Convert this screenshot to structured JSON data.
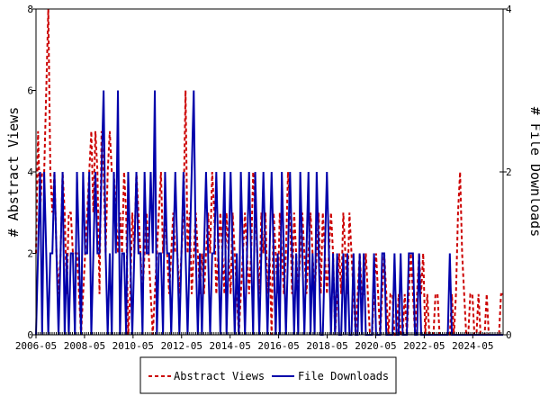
{
  "chart_data": {
    "type": "line",
    "x_tick_labels": [
      "2006-05",
      "2008-05",
      "2010-05",
      "2012-05",
      "2014-05",
      "2016-05",
      "2018-05",
      "2020-05",
      "2022-05",
      "2024-05"
    ],
    "x_start": "2006-05",
    "x_end": "2025-08",
    "y_left": {
      "label": "# Abstract Views",
      "ylim": [
        0,
        8
      ],
      "ticks": [
        "0",
        "2",
        "4",
        "6",
        "8"
      ]
    },
    "y_right": {
      "label": "# File Downloads",
      "ylim": [
        0,
        4
      ],
      "ticks": [
        "0",
        "2",
        "4"
      ]
    },
    "legend": {
      "placement": "bottom-center"
    },
    "series": [
      {
        "name": "Abstract Views",
        "axis": "left",
        "color": "#cc0000",
        "style": "dashed",
        "values": [
          2,
          5,
          3,
          4,
          4,
          6,
          8,
          4,
          3,
          4,
          2,
          1,
          2,
          4,
          3,
          1,
          3,
          3,
          2,
          2,
          2,
          1,
          0,
          1,
          2,
          3,
          4,
          5,
          3,
          5,
          4,
          1,
          5,
          4,
          2,
          4,
          5,
          4,
          4,
          3,
          2,
          3,
          2,
          4,
          3,
          0,
          1,
          3,
          2,
          4,
          3,
          2,
          1,
          2,
          3,
          2,
          1,
          0,
          1,
          2,
          3,
          4,
          2,
          3,
          2,
          1,
          2,
          3,
          2,
          2,
          1,
          2,
          3,
          6,
          2,
          3,
          1,
          2,
          3,
          2,
          1,
          2,
          1,
          2,
          3,
          2,
          4,
          3,
          1,
          2,
          3,
          2,
          1,
          3,
          2,
          1,
          3,
          2,
          1,
          0,
          1,
          2,
          3,
          2,
          1,
          2,
          4,
          3,
          2,
          1,
          3,
          2,
          3,
          1,
          2,
          0,
          3,
          2,
          1,
          3,
          2,
          1,
          2,
          4,
          3,
          1,
          3,
          2,
          1,
          2,
          3,
          2,
          1,
          2,
          3,
          2,
          1,
          2,
          3,
          1,
          3,
          2,
          1,
          2,
          3,
          2,
          0,
          1,
          2,
          1,
          3,
          2,
          1,
          3,
          2,
          1,
          0,
          1,
          2,
          1,
          1,
          2,
          1,
          0,
          0,
          1,
          2,
          1,
          0,
          1,
          2,
          1,
          0,
          1,
          1,
          0,
          0,
          1,
          0,
          0,
          1,
          0,
          1,
          2,
          1,
          0,
          1,
          2,
          1,
          2,
          0,
          1,
          0,
          0,
          0,
          1,
          1,
          0,
          0,
          0,
          0,
          0,
          0,
          1,
          0,
          1,
          3,
          4,
          2,
          1,
          0,
          0,
          1,
          1,
          0,
          0,
          1,
          0,
          0,
          0,
          1,
          0,
          0,
          0,
          0,
          0,
          0,
          1,
          1
        ],
        "last_value": 1
      },
      {
        "name": "File Downloads",
        "axis": "right",
        "color": "#0000aa",
        "style": "solid",
        "values": [
          0,
          1,
          2,
          0,
          2,
          1,
          0,
          1,
          1,
          2,
          1,
          0,
          1,
          2,
          0,
          1,
          0,
          1,
          1,
          0,
          2,
          1,
          0,
          2,
          1,
          1,
          2,
          0,
          1,
          2,
          1,
          1,
          2,
          3,
          1,
          0,
          1,
          0,
          2,
          1,
          3,
          0,
          1,
          1,
          0,
          2,
          1,
          0,
          1,
          2,
          1,
          1,
          0,
          2,
          1,
          1,
          2,
          1,
          3,
          0,
          1,
          1,
          0,
          2,
          1,
          1,
          0,
          1,
          2,
          1,
          0,
          1,
          2,
          1,
          0,
          1,
          2,
          3,
          1,
          0,
          1,
          0,
          1,
          2,
          1,
          0,
          1,
          1,
          2,
          1,
          0,
          1,
          2,
          0,
          1,
          2,
          1,
          0,
          1,
          0,
          2,
          1,
          0,
          1,
          2,
          1,
          0,
          2,
          1,
          0,
          1,
          2,
          1,
          0,
          1,
          2,
          1,
          0,
          1,
          0,
          2,
          1,
          0,
          1,
          2,
          1,
          0,
          1,
          0,
          2,
          1,
          0,
          1,
          2,
          0,
          1,
          0,
          2,
          1,
          0,
          0,
          1,
          2,
          1,
          0,
          1,
          0,
          1,
          0,
          0,
          1,
          0,
          1,
          0,
          0,
          1,
          0,
          0,
          1,
          0,
          1,
          0,
          0,
          0,
          0,
          1,
          0,
          0,
          0,
          1,
          1,
          0,
          0,
          0,
          0,
          1,
          0,
          0,
          1,
          0,
          0,
          0,
          1,
          1,
          1,
          0,
          0,
          1,
          0,
          0,
          0,
          0,
          0,
          0,
          0,
          0,
          0,
          0,
          0,
          0,
          0,
          0,
          1,
          0,
          0,
          0,
          0,
          0,
          0,
          0,
          0,
          0,
          0,
          0,
          0,
          0,
          0,
          0,
          0,
          0,
          0,
          0,
          0,
          0,
          0,
          0,
          0,
          0,
          0
        ],
        "last_value": 0
      }
    ]
  }
}
